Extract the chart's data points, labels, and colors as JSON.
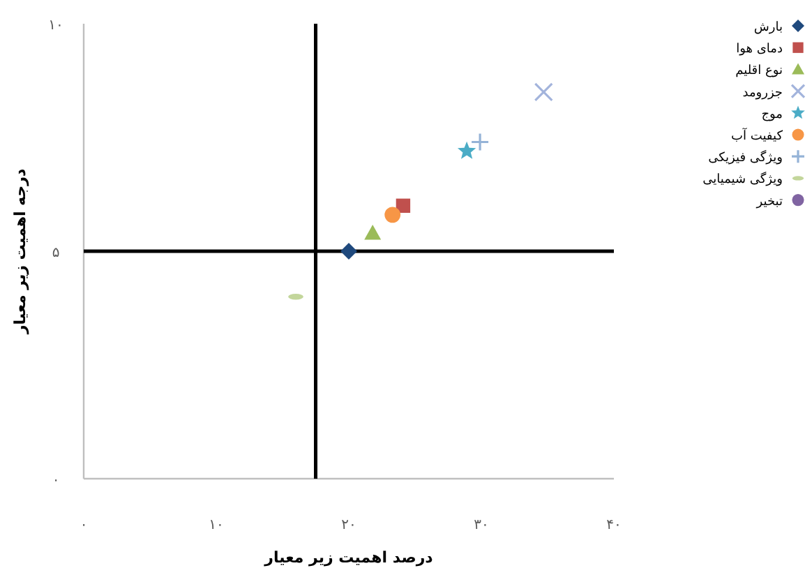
{
  "chart_data": {
    "type": "scatter",
    "xlabel": "درصد اهمیت زیر معیار",
    "ylabel": "درجه اهمیت زیر معیار",
    "xlim": [
      0,
      40
    ],
    "ylim": [
      0,
      10
    ],
    "xticks": [
      {
        "value": 0,
        "label": "۰"
      },
      {
        "value": 10,
        "label": "۱۰"
      },
      {
        "value": 20,
        "label": "۲۰"
      },
      {
        "value": 30,
        "label": "۳۰"
      },
      {
        "value": 40,
        "label": "۴۰"
      }
    ],
    "yticks": [
      {
        "value": 0,
        "label": "۰"
      },
      {
        "value": 5,
        "label": "۵"
      },
      {
        "value": 10,
        "label": "۱۰"
      }
    ],
    "grid": false,
    "legend": "right",
    "ref_lines": [
      {
        "axis": "x",
        "value": 17.5,
        "color": "#000000"
      },
      {
        "axis": "y",
        "value": 5,
        "color": "#000000"
      }
    ],
    "series": [
      {
        "name": "بارش",
        "color": "#1f497d",
        "marker": "diamond",
        "x": [
          20.0
        ],
        "values": [
          5.0
        ]
      },
      {
        "name": "دمای هوا",
        "color": "#c0504d",
        "marker": "square",
        "x": [
          24.1
        ],
        "values": [
          6.0
        ]
      },
      {
        "name": "نوع اقلیم",
        "color": "#9bbb59",
        "marker": "triangle",
        "x": [
          21.8
        ],
        "values": [
          5.4
        ]
      },
      {
        "name": "جزرومد",
        "color": "#a3b4dc",
        "marker": "cross",
        "x": [
          34.7
        ],
        "values": [
          8.5
        ]
      },
      {
        "name": "موج",
        "color": "#4bacc6",
        "marker": "star",
        "x": [
          28.9
        ],
        "values": [
          7.2
        ]
      },
      {
        "name": "کیفیت آب",
        "color": "#f79646",
        "marker": "circle",
        "x": [
          23.3
        ],
        "values": [
          5.8
        ]
      },
      {
        "name": "ویژگی فیزیکی",
        "color": "#95b3d7",
        "marker": "plus",
        "x": [
          29.9
        ],
        "values": [
          7.4
        ]
      },
      {
        "name": "ویژگی شیمیایی",
        "color": "#c3d69b",
        "x": [
          16.0
        ],
        "values": [
          4.0
        ]
      },
      {
        "name": "تبخیر",
        "color": "#8064a2",
        "marker": "circle",
        "x": [
          null
        ],
        "values": [
          null
        ]
      }
    ]
  }
}
